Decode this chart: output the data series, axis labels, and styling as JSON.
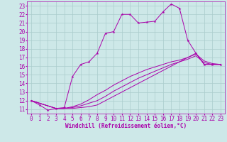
{
  "xlabel": "Windchill (Refroidissement éolien,°C)",
  "xlim": [
    -0.5,
    23.5
  ],
  "ylim": [
    10.5,
    23.5
  ],
  "yticks": [
    11,
    12,
    13,
    14,
    15,
    16,
    17,
    18,
    19,
    20,
    21,
    22,
    23
  ],
  "xticks": [
    0,
    1,
    2,
    3,
    4,
    5,
    6,
    7,
    8,
    9,
    10,
    11,
    12,
    13,
    14,
    15,
    16,
    17,
    18,
    19,
    20,
    21,
    22,
    23
  ],
  "bg_color": "#cde8e8",
  "line_color": "#aa00aa",
  "grid_color": "#aacccc",
  "curves": [
    {
      "x": [
        0,
        1,
        2,
        3,
        4,
        5,
        6,
        7,
        8,
        9,
        10,
        11,
        12,
        13,
        14,
        15,
        16,
        17,
        18,
        19,
        20,
        21,
        22,
        23
      ],
      "y": [
        12,
        11.5,
        10.9,
        11.1,
        11.2,
        14.8,
        16.2,
        16.5,
        17.5,
        19.8,
        20.0,
        22.0,
        22.0,
        21.0,
        21.1,
        21.2,
        22.3,
        23.2,
        22.7,
        19.0,
        17.5,
        16.2,
        16.2,
        16.2
      ],
      "marker": true
    },
    {
      "x": [
        0,
        3,
        4,
        5,
        6,
        7,
        8,
        9,
        10,
        11,
        12,
        13,
        14,
        15,
        16,
        17,
        18,
        19,
        20,
        21,
        22,
        23
      ],
      "y": [
        12,
        11.1,
        11.1,
        11.1,
        11.2,
        11.3,
        11.5,
        12.0,
        12.5,
        13.0,
        13.5,
        14.0,
        14.5,
        15.0,
        15.5,
        16.0,
        16.5,
        17.0,
        17.5,
        16.2,
        16.2,
        16.2
      ],
      "marker": false
    },
    {
      "x": [
        0,
        3,
        4,
        5,
        6,
        7,
        8,
        9,
        10,
        11,
        12,
        13,
        14,
        15,
        16,
        17,
        18,
        19,
        20,
        21,
        22,
        23
      ],
      "y": [
        12,
        11.1,
        11.1,
        11.2,
        11.4,
        11.7,
        12.0,
        12.5,
        13.1,
        13.6,
        14.1,
        14.6,
        15.0,
        15.4,
        15.8,
        16.2,
        16.5,
        16.8,
        17.2,
        16.4,
        16.2,
        16.2
      ],
      "marker": false
    },
    {
      "x": [
        0,
        3,
        4,
        5,
        6,
        7,
        8,
        9,
        10,
        11,
        12,
        13,
        14,
        15,
        16,
        17,
        18,
        19,
        20,
        21,
        22,
        23
      ],
      "y": [
        12,
        11.1,
        11.1,
        11.3,
        11.6,
        12.1,
        12.7,
        13.2,
        13.8,
        14.3,
        14.8,
        15.2,
        15.6,
        15.9,
        16.2,
        16.5,
        16.7,
        17.0,
        17.4,
        16.6,
        16.3,
        16.2
      ],
      "marker": false
    }
  ]
}
